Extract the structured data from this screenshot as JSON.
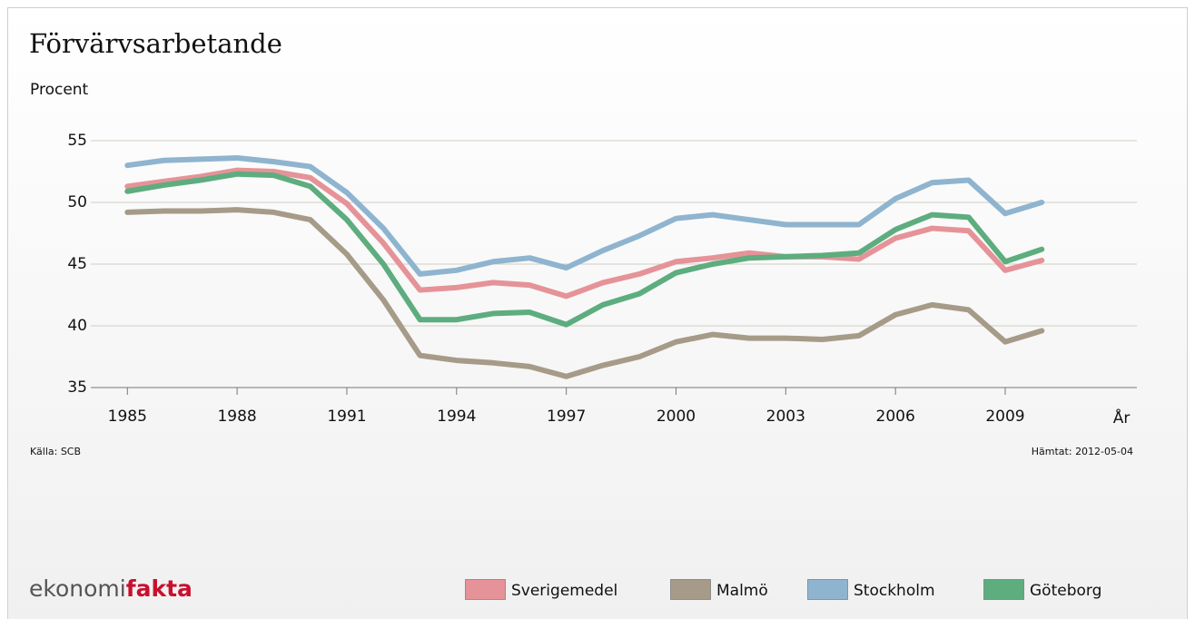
{
  "chart_data": {
    "type": "line",
    "title": "Förvärvsarbetande",
    "subtitle": "Procent",
    "x_label": "År",
    "source": "Källa: SCB",
    "retrieved": "Hämtat: 2012-05-04",
    "logo": [
      "ekonomi",
      "fakta"
    ],
    "x": [
      1985,
      1986,
      1987,
      1988,
      1989,
      1990,
      1991,
      1992,
      1993,
      1994,
      1995,
      1996,
      1997,
      1998,
      1999,
      2000,
      2001,
      2002,
      2003,
      2004,
      2005,
      2006,
      2007,
      2008,
      2009,
      2010
    ],
    "xlim": [
      1984,
      2012.6
    ],
    "xticks": [
      1985,
      1988,
      1991,
      1994,
      1997,
      2000,
      2003,
      2006,
      2009
    ],
    "ylim": [
      35,
      55
    ],
    "yticks": [
      35,
      40,
      45,
      50,
      55
    ],
    "grid": true,
    "legend": "bottom",
    "series": [
      {
        "name": "Sverigemedel",
        "color": "#e59398",
        "values": [
          51.3,
          51.7,
          52.1,
          52.6,
          52.5,
          52.0,
          49.9,
          46.7,
          42.9,
          43.1,
          43.5,
          43.3,
          42.4,
          43.5,
          44.2,
          45.2,
          45.5,
          45.9,
          45.6,
          45.6,
          45.4,
          47.1,
          47.9,
          47.7,
          44.5,
          45.3
        ]
      },
      {
        "name": "Malmö",
        "color": "#a69b88",
        "values": [
          49.2,
          49.3,
          49.3,
          49.4,
          49.2,
          48.6,
          45.8,
          42.1,
          37.6,
          37.2,
          37.0,
          36.7,
          35.9,
          36.8,
          37.5,
          38.7,
          39.3,
          39.0,
          39.0,
          38.9,
          39.2,
          40.9,
          41.7,
          41.3,
          38.7,
          39.6
        ]
      },
      {
        "name": "Stockholm",
        "color": "#8fb4cf",
        "values": [
          53.0,
          53.4,
          53.5,
          53.6,
          53.3,
          52.9,
          50.8,
          47.9,
          44.2,
          44.5,
          45.2,
          45.5,
          44.7,
          46.1,
          47.3,
          48.7,
          49.0,
          48.6,
          48.2,
          48.2,
          48.2,
          50.3,
          51.6,
          51.8,
          49.1,
          50.0
        ]
      },
      {
        "name": "Göteborg",
        "color": "#5dad7f",
        "values": [
          50.9,
          51.4,
          51.8,
          52.3,
          52.2,
          51.3,
          48.6,
          45.0,
          40.5,
          40.5,
          41.0,
          41.1,
          40.1,
          41.7,
          42.6,
          44.3,
          45.0,
          45.5,
          45.6,
          45.7,
          45.9,
          47.8,
          49.0,
          48.8,
          45.2,
          46.2
        ]
      }
    ]
  }
}
